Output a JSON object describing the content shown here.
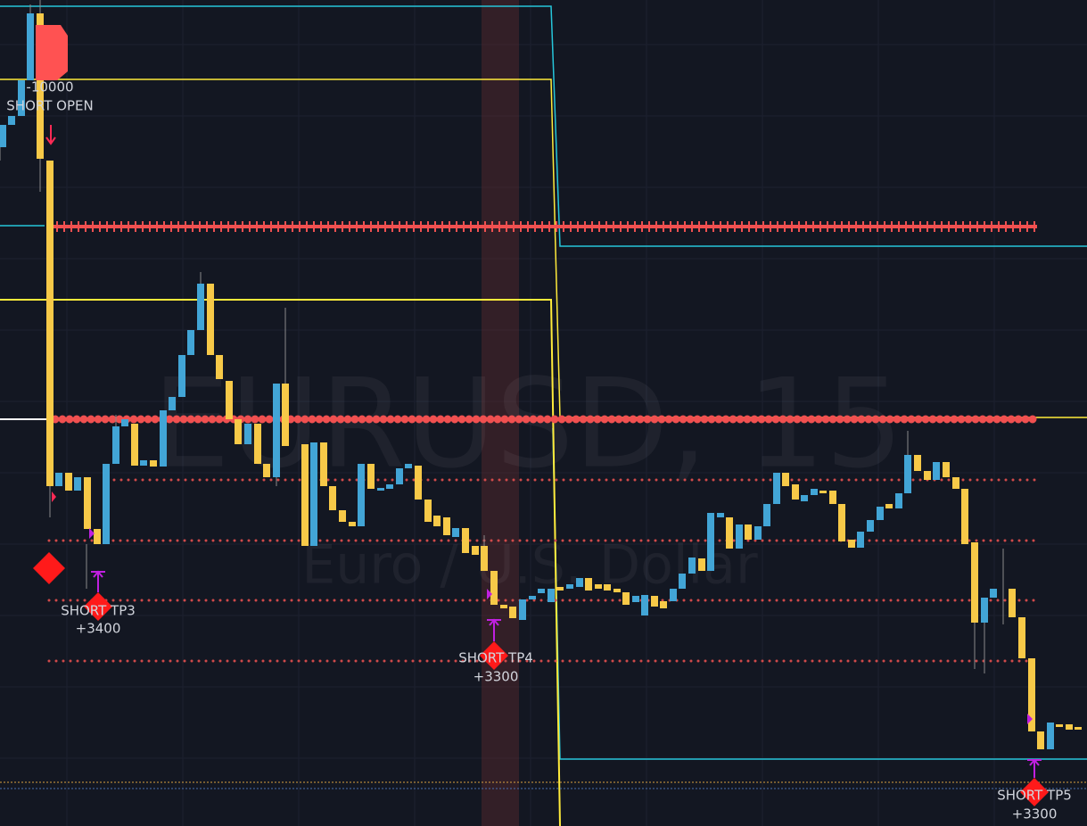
{
  "watermark": {
    "symbol": "EURUSD, 15",
    "description": "Euro / U.S. Dollar"
  },
  "labels": [
    {
      "amount": "-10000",
      "text": "SHORT OPEN"
    },
    {
      "text": "SHORT TP3",
      "amount": "+3400"
    },
    {
      "text": "SHORT TP4",
      "amount": "+3300"
    },
    {
      "text": "SHORT TP5",
      "amount": "+3300"
    }
  ]
}
